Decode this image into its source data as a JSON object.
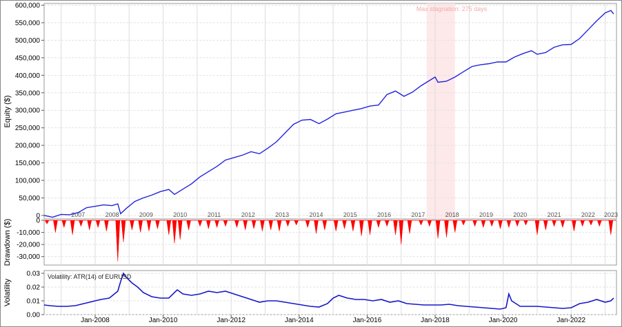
{
  "chart_data": [
    {
      "type": "line",
      "ylabel": "Equity ($)",
      "ylim": [
        -10000,
        605000
      ],
      "yticks": [
        0,
        50000,
        100000,
        150000,
        200000,
        250000,
        300000,
        350000,
        400000,
        450000,
        500000,
        550000,
        600000
      ],
      "ytick_labels": [
        "0",
        "50,000",
        "100,000",
        "150,000",
        "200,000",
        "250,000",
        "300,000",
        "350,000",
        "400,000",
        "450,000",
        "500,000",
        "550,000",
        "600,000"
      ],
      "year_labels": [
        "2007",
        "2008",
        "2009",
        "2010",
        "2011",
        "2012",
        "2013",
        "2014",
        "2015",
        "2016",
        "2017",
        "2018",
        "2019",
        "2020",
        "2021",
        "2022",
        "2023"
      ],
      "grid": true,
      "annotation": "Max stagnation: 275 days",
      "stagnation_range": [
        "2017-10",
        "2018-08"
      ],
      "series": [
        {
          "color": "#2222dd",
          "points": [
            [
              "2006-07",
              0
            ],
            [
              "2006-10",
              -5000
            ],
            [
              "2007-01",
              3000
            ],
            [
              "2007-04",
              2000
            ],
            [
              "2007-07",
              8000
            ],
            [
              "2007-10",
              22000
            ],
            [
              "2008-01",
              26000
            ],
            [
              "2008-04",
              30000
            ],
            [
              "2008-07",
              28000
            ],
            [
              "2008-09",
              33000
            ],
            [
              "2008-10",
              5000
            ],
            [
              "2008-12",
              20000
            ],
            [
              "2009-03",
              40000
            ],
            [
              "2009-06",
              50000
            ],
            [
              "2009-09",
              58000
            ],
            [
              "2009-12",
              68000
            ],
            [
              "2010-03",
              74000
            ],
            [
              "2010-05",
              60000
            ],
            [
              "2010-08",
              75000
            ],
            [
              "2010-11",
              90000
            ],
            [
              "2011-02",
              110000
            ],
            [
              "2011-05",
              125000
            ],
            [
              "2011-08",
              140000
            ],
            [
              "2011-11",
              158000
            ],
            [
              "2012-02",
              165000
            ],
            [
              "2012-05",
              172000
            ],
            [
              "2012-08",
              182000
            ],
            [
              "2012-11",
              176000
            ],
            [
              "2013-02",
              192000
            ],
            [
              "2013-05",
              210000
            ],
            [
              "2013-08",
              235000
            ],
            [
              "2013-11",
              260000
            ],
            [
              "2014-02",
              272000
            ],
            [
              "2014-05",
              274000
            ],
            [
              "2014-08",
              262000
            ],
            [
              "2014-11",
              275000
            ],
            [
              "2015-02",
              290000
            ],
            [
              "2015-05",
              295000
            ],
            [
              "2015-08",
              300000
            ],
            [
              "2015-11",
              305000
            ],
            [
              "2016-02",
              312000
            ],
            [
              "2016-05",
              315000
            ],
            [
              "2016-08",
              345000
            ],
            [
              "2016-11",
              355000
            ],
            [
              "2017-02",
              340000
            ],
            [
              "2017-05",
              352000
            ],
            [
              "2017-08",
              370000
            ],
            [
              "2017-11",
              385000
            ],
            [
              "2018-01",
              395000
            ],
            [
              "2018-02",
              380000
            ],
            [
              "2018-05",
              383000
            ],
            [
              "2018-08",
              395000
            ],
            [
              "2018-11",
              410000
            ],
            [
              "2019-02",
              425000
            ],
            [
              "2019-05",
              430000
            ],
            [
              "2019-08",
              433000
            ],
            [
              "2019-11",
              438000
            ],
            [
              "2020-02",
              438000
            ],
            [
              "2020-05",
              452000
            ],
            [
              "2020-08",
              462000
            ],
            [
              "2020-11",
              470000
            ],
            [
              "2021-01",
              460000
            ],
            [
              "2021-04",
              465000
            ],
            [
              "2021-07",
              480000
            ],
            [
              "2021-10",
              487000
            ],
            [
              "2022-01",
              488000
            ],
            [
              "2022-04",
              505000
            ],
            [
              "2022-07",
              530000
            ],
            [
              "2022-10",
              555000
            ],
            [
              "2023-01",
              578000
            ],
            [
              "2023-03",
              585000
            ],
            [
              "2023-04",
              575000
            ]
          ]
        }
      ]
    },
    {
      "type": "bar",
      "ylabel": "Drawdown ($)",
      "ylim": [
        -37000,
        0
      ],
      "yticks": [
        0,
        -10000,
        -20000,
        -30000
      ],
      "ytick_labels": [
        "0",
        "-10,000",
        "-20,000",
        "-30,000"
      ],
      "grid": true,
      "series": [
        {
          "color": "#ff0000",
          "points": [
            [
              "2006-08",
              -3000
            ],
            [
              "2006-11",
              -10000
            ],
            [
              "2007-02",
              -6000
            ],
            [
              "2007-05",
              -12000
            ],
            [
              "2007-08",
              -5000
            ],
            [
              "2007-11",
              -8000
            ],
            [
              "2008-02",
              -6000
            ],
            [
              "2008-05",
              -9000
            ],
            [
              "2008-09",
              -34000
            ],
            [
              "2008-11",
              -18000
            ],
            [
              "2009-02",
              -8000
            ],
            [
              "2009-05",
              -10000
            ],
            [
              "2009-08",
              -9000
            ],
            [
              "2009-11",
              -7000
            ],
            [
              "2010-03",
              -12000
            ],
            [
              "2010-05",
              -19000
            ],
            [
              "2010-07",
              -16000
            ],
            [
              "2010-10",
              -8000
            ],
            [
              "2011-02",
              -5000
            ],
            [
              "2011-05",
              -7000
            ],
            [
              "2011-08",
              -6000
            ],
            [
              "2011-11",
              -5000
            ],
            [
              "2012-03",
              -6000
            ],
            [
              "2012-06",
              -8000
            ],
            [
              "2012-09",
              -7000
            ],
            [
              "2012-12",
              -9000
            ],
            [
              "2013-03",
              -8000
            ],
            [
              "2013-06",
              -9000
            ],
            [
              "2013-09",
              -5000
            ],
            [
              "2013-12",
              -4000
            ],
            [
              "2014-04",
              -6000
            ],
            [
              "2014-07",
              -11000
            ],
            [
              "2014-10",
              -8000
            ],
            [
              "2015-02",
              -9000
            ],
            [
              "2015-05",
              -7000
            ],
            [
              "2015-08",
              -9000
            ],
            [
              "2015-11",
              -13000
            ],
            [
              "2016-02",
              -12000
            ],
            [
              "2016-05",
              -6000
            ],
            [
              "2016-08",
              -5000
            ],
            [
              "2016-11",
              -12000
            ],
            [
              "2017-01",
              -20000
            ],
            [
              "2017-04",
              -11000
            ],
            [
              "2017-08",
              -4000
            ],
            [
              "2017-11",
              -5000
            ],
            [
              "2018-02",
              -15000
            ],
            [
              "2018-05",
              -14000
            ],
            [
              "2018-08",
              -10000
            ],
            [
              "2018-11",
              -4000
            ],
            [
              "2019-03",
              -5000
            ],
            [
              "2019-06",
              -6000
            ],
            [
              "2019-09",
              -5000
            ],
            [
              "2019-12",
              -7000
            ],
            [
              "2020-03",
              -6000
            ],
            [
              "2020-06",
              -5000
            ],
            [
              "2020-09",
              -4000
            ],
            [
              "2021-01",
              -12000
            ],
            [
              "2021-04",
              -8000
            ],
            [
              "2021-07",
              -5000
            ],
            [
              "2021-10",
              -6000
            ],
            [
              "2022-02",
              -9000
            ],
            [
              "2022-05",
              -5000
            ],
            [
              "2022-08",
              -4000
            ],
            [
              "2022-11",
              -5000
            ],
            [
              "2023-03",
              -12000
            ]
          ]
        }
      ]
    },
    {
      "type": "line",
      "ylabel": "Volatility",
      "ylim": [
        0,
        0.032
      ],
      "yticks": [
        0,
        0.01,
        0.02,
        0.03
      ],
      "ytick_labels": [
        "0.00",
        "0.01",
        "0.02",
        "0.03"
      ],
      "xtick_labels": [
        "Jan-2008",
        "Jan-2010",
        "Jan-2012",
        "Jan-2014",
        "Jan-2016",
        "Jan-2018",
        "Jan-2020",
        "Jan-2022"
      ],
      "annotation": "Volatility:  ATR(14) of EURUSD",
      "grid": true,
      "series": [
        {
          "color": "#1515cc",
          "points": [
            [
              "2006-07",
              0.007
            ],
            [
              "2006-09",
              0.0065
            ],
            [
              "2006-12",
              0.006
            ],
            [
              "2007-03",
              0.006
            ],
            [
              "2007-06",
              0.0065
            ],
            [
              "2007-09",
              0.008
            ],
            [
              "2007-12",
              0.0095
            ],
            [
              "2008-03",
              0.011
            ],
            [
              "2008-06",
              0.012
            ],
            [
              "2008-09",
              0.017
            ],
            [
              "2008-10",
              0.024
            ],
            [
              "2008-11",
              0.03
            ],
            [
              "2008-12",
              0.027
            ],
            [
              "2009-02",
              0.023
            ],
            [
              "2009-04",
              0.02
            ],
            [
              "2009-06",
              0.016
            ],
            [
              "2009-09",
              0.013
            ],
            [
              "2009-12",
              0.012
            ],
            [
              "2010-03",
              0.012
            ],
            [
              "2010-06",
              0.018
            ],
            [
              "2010-08",
              0.015
            ],
            [
              "2010-11",
              0.014
            ],
            [
              "2011-02",
              0.015
            ],
            [
              "2011-05",
              0.017
            ],
            [
              "2011-08",
              0.016
            ],
            [
              "2011-11",
              0.017
            ],
            [
              "2012-02",
              0.015
            ],
            [
              "2012-05",
              0.013
            ],
            [
              "2012-08",
              0.011
            ],
            [
              "2012-11",
              0.009
            ],
            [
              "2013-02",
              0.01
            ],
            [
              "2013-05",
              0.01
            ],
            [
              "2013-08",
              0.009
            ],
            [
              "2013-11",
              0.008
            ],
            [
              "2014-02",
              0.007
            ],
            [
              "2014-05",
              0.006
            ],
            [
              "2014-08",
              0.0055
            ],
            [
              "2014-11",
              0.008
            ],
            [
              "2015-01",
              0.012
            ],
            [
              "2015-03",
              0.014
            ],
            [
              "2015-06",
              0.012
            ],
            [
              "2015-09",
              0.011
            ],
            [
              "2015-12",
              0.011
            ],
            [
              "2016-03",
              0.01
            ],
            [
              "2016-06",
              0.011
            ],
            [
              "2016-09",
              0.009
            ],
            [
              "2016-12",
              0.01
            ],
            [
              "2017-03",
              0.008
            ],
            [
              "2017-06",
              0.0075
            ],
            [
              "2017-09",
              0.007
            ],
            [
              "2017-12",
              0.007
            ],
            [
              "2018-03",
              0.007
            ],
            [
              "2018-06",
              0.0075
            ],
            [
              "2018-09",
              0.0065
            ],
            [
              "2018-12",
              0.006
            ],
            [
              "2019-03",
              0.0055
            ],
            [
              "2019-06",
              0.005
            ],
            [
              "2019-09",
              0.0045
            ],
            [
              "2019-12",
              0.004
            ],
            [
              "2020-02",
              0.005
            ],
            [
              "2020-03",
              0.015
            ],
            [
              "2020-04",
              0.01
            ],
            [
              "2020-07",
              0.006
            ],
            [
              "2020-10",
              0.006
            ],
            [
              "2021-01",
              0.006
            ],
            [
              "2021-04",
              0.0055
            ],
            [
              "2021-07",
              0.005
            ],
            [
              "2021-10",
              0.0045
            ],
            [
              "2022-01",
              0.005
            ],
            [
              "2022-04",
              0.008
            ],
            [
              "2022-07",
              0.009
            ],
            [
              "2022-10",
              0.011
            ],
            [
              "2023-01",
              0.009
            ],
            [
              "2023-03",
              0.01
            ],
            [
              "2023-04",
              0.012
            ]
          ]
        }
      ]
    }
  ]
}
